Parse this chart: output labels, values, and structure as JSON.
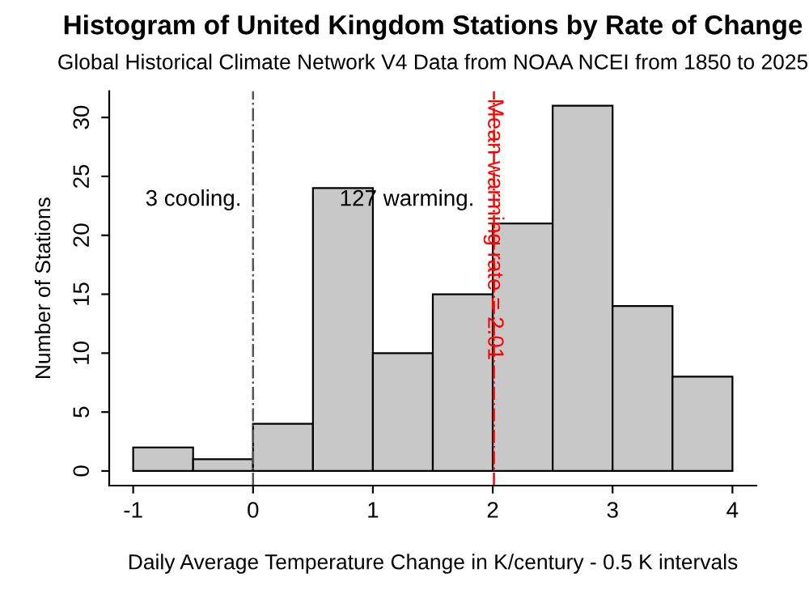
{
  "chart_data": {
    "type": "histogram",
    "title": "Histogram of United Kingdom Stations by Rate of Change",
    "subtitle": "Global Historical Climate Network V4 Data from NOAA NCEI from 1850 to 2025",
    "xlabel": "Daily Average Temperature Change in K/century - 0.5 K intervals",
    "ylabel": "Number of Stations",
    "bins": [
      -1,
      -0.5,
      0,
      0.5,
      1,
      1.5,
      2,
      2.5,
      3,
      3.5,
      4
    ],
    "values": [
      2,
      1,
      4,
      24,
      10,
      15,
      21,
      31,
      14,
      8
    ],
    "color": "#c8c8c8",
    "xlim": [
      -1.2,
      4.2
    ],
    "xticks": [
      -1,
      0,
      1,
      2,
      3,
      4
    ],
    "ylim": [
      -1.24,
      32.24
    ],
    "yticks": [
      0,
      5,
      10,
      15,
      20,
      25,
      30
    ],
    "grid": false,
    "ref_lines": [
      {
        "axis": "x",
        "value": 0,
        "label": null,
        "color": "#555555",
        "line_style": "dashdot"
      },
      {
        "axis": "x",
        "value": 2.01,
        "label": "Mean warming rate = 2.01",
        "color": "#ff0000",
        "line_style": "dashdot"
      }
    ],
    "annotations": [
      "3 cooling.",
      "127 warming."
    ]
  }
}
